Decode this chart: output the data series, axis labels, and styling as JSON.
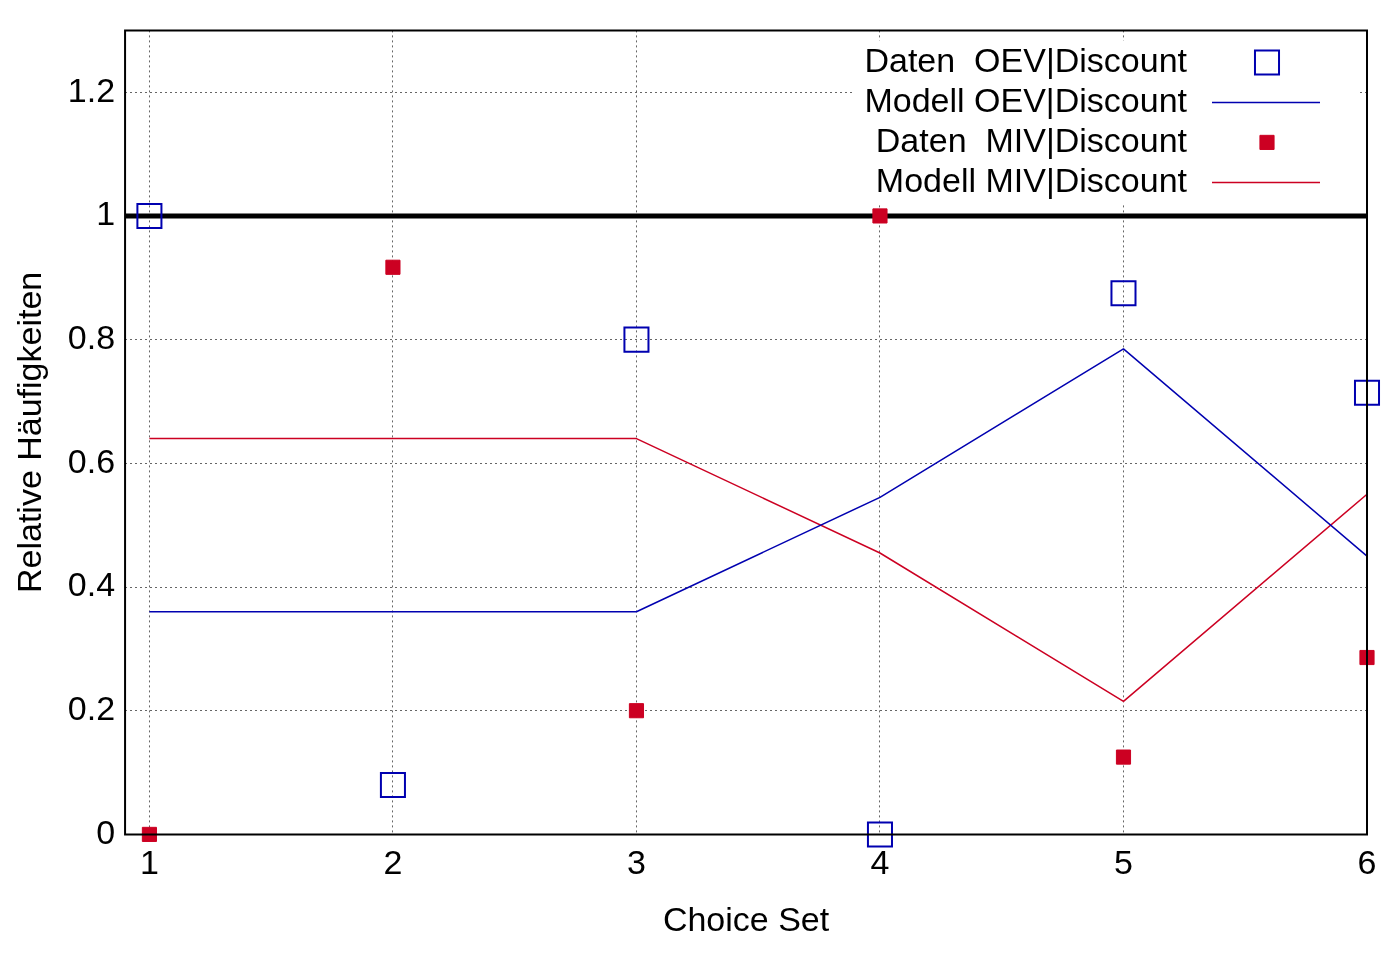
{
  "chart_data": {
    "type": "line",
    "xlabel": "Choice Set",
    "ylabel": "Relative Häufigkeiten",
    "x": [
      1,
      2,
      3,
      4,
      5,
      6
    ],
    "series": [
      {
        "name": "Daten  OEV|Discount",
        "type": "scatter",
        "marker": "square",
        "color": "#0000b0",
        "values": [
          1,
          0.08,
          0.8,
          0,
          0.875,
          0.714
        ]
      },
      {
        "name": "Modell OEV|Discount",
        "type": "line",
        "marker": "none",
        "color": "#0000b0",
        "values": [
          0.36,
          0.36,
          0.36,
          0.545,
          0.785,
          0.45
        ]
      },
      {
        "name": "Daten  MIV|Discount",
        "type": "scatter",
        "marker": "square",
        "color": "#cc0022",
        "values": [
          0,
          0.917,
          0.2,
          1,
          0.125,
          0.286
        ]
      },
      {
        "name": "Modell MIV|Discount",
        "type": "line",
        "marker": "none",
        "color": "#cc0022",
        "values": [
          0.64,
          0.64,
          0.64,
          0.455,
          0.215,
          0.55
        ]
      }
    ],
    "xlim": [
      0.9,
      6
    ],
    "xticks": [
      1,
      2,
      3,
      4,
      5,
      6
    ],
    "ylim": [
      0,
      1.3
    ],
    "yticks": [
      0,
      0.2,
      0.4,
      0.6,
      0.8,
      1,
      1.2
    ],
    "ref_lines": [
      {
        "axis": "y",
        "value": 1,
        "color": "#000000"
      }
    ],
    "grid": true,
    "legend": "top right"
  }
}
